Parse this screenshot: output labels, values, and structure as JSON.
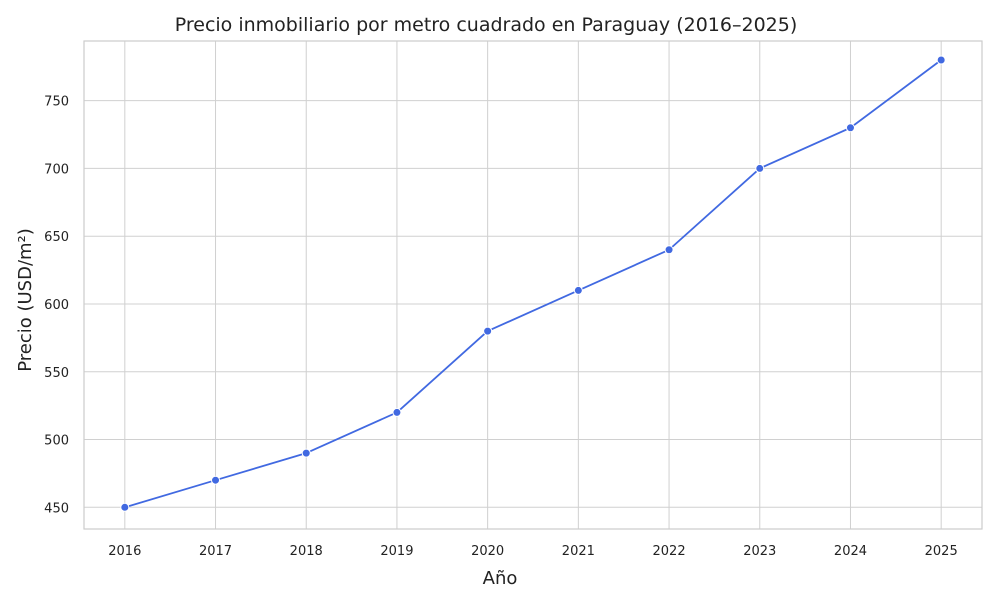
{
  "chart_data": {
    "type": "line",
    "title": "Precio inmobiliario por metro cuadrado en Paraguay (2016–2025)",
    "xlabel": "Año",
    "ylabel": "Precio (USD/m²)",
    "x": [
      2016,
      2017,
      2018,
      2019,
      2020,
      2021,
      2022,
      2023,
      2024,
      2025
    ],
    "series": [
      {
        "values": [
          450,
          470,
          490,
          520,
          580,
          610,
          640,
          700,
          730,
          780
        ],
        "color": "#4169e1"
      }
    ],
    "xlim": [
      2015.55,
      2025.45
    ],
    "ylim": [
      434,
      794
    ],
    "yticks": [
      450,
      500,
      550,
      600,
      650,
      700,
      750
    ],
    "grid": true,
    "legend": "none",
    "marker": "circle"
  }
}
